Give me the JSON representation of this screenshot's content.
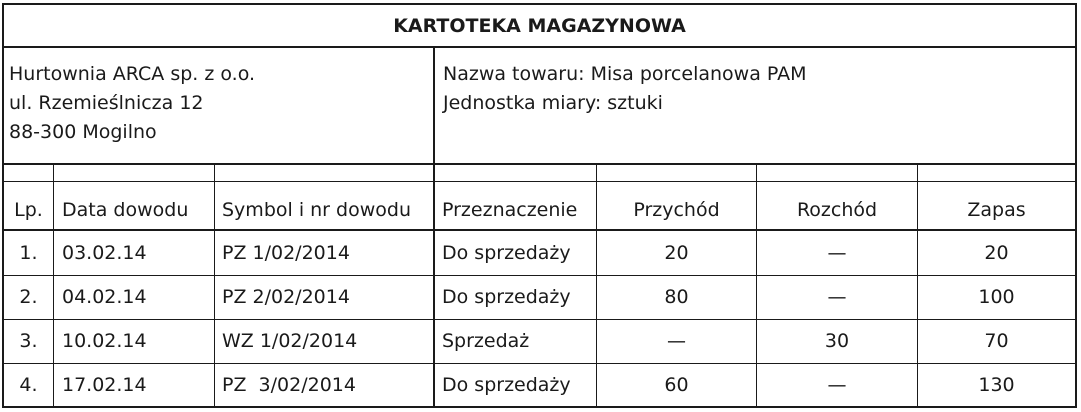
{
  "title": "KARTOTEKA MAGAZYNOWA",
  "company": {
    "line1": "Hurtownia ARCA sp. z o.o.",
    "line2": "ul. Rzemieślnicza 12",
    "line3": "88-300 Mogilno"
  },
  "product": {
    "name_line": "Nazwa towaru: Misa porcelanowa PAM",
    "unit_line": "Jednostka miary: sztuki"
  },
  "table": {
    "headers": [
      "Lp.",
      "Data dowodu",
      "Symbol i nr dowodu",
      "Przeznaczenie",
      "Przychód",
      "Rozchód",
      "Zapas"
    ],
    "rows": [
      [
        "1.",
        "03.02.14",
        "PZ 1/02/2014",
        "Do sprzedaży",
        "20",
        "—",
        "20"
      ],
      [
        "2.",
        "04.02.14",
        "PZ 2/02/2014",
        "Do sprzedaży",
        "80",
        "—",
        "100"
      ],
      [
        "3.",
        "10.02.14",
        "WZ 1/02/2014",
        "Sprzedaż",
        "—",
        "30",
        "70"
      ],
      [
        "4.",
        "17.02.14",
        "PZ  3/02/2014",
        "Do sprzedaży",
        "60",
        "—",
        "130"
      ]
    ]
  }
}
